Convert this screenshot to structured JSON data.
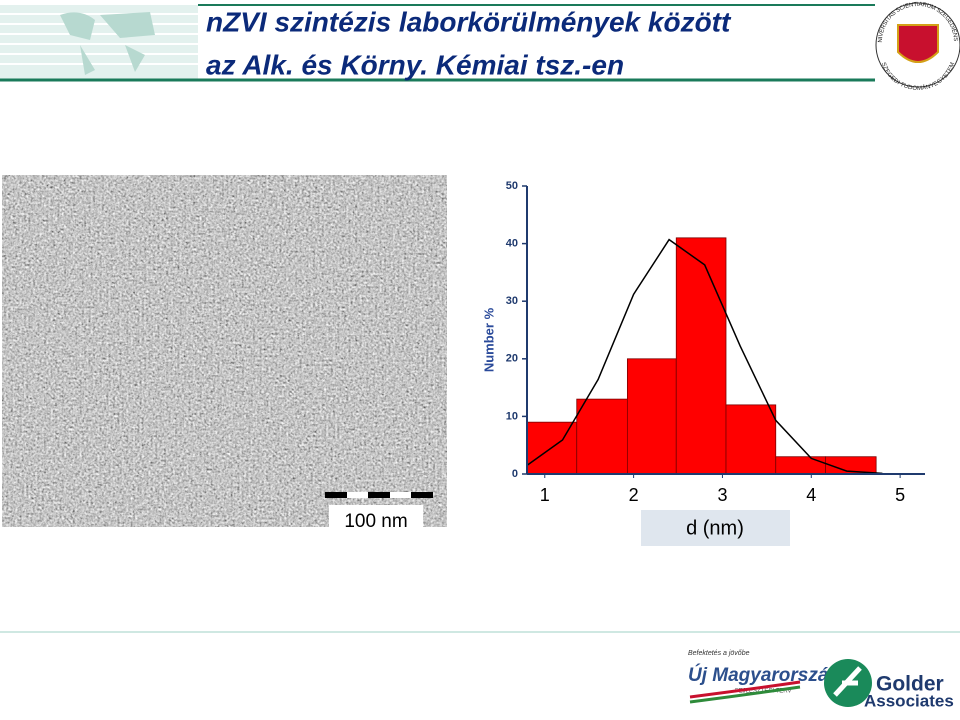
{
  "header": {
    "title_line1": "nZVI szintézis laborkörülmények között",
    "title_line2": "az Alk. és Körny. Kémiai tsz.-en",
    "seal_top": "UNIVERSITAS SCIENTIARUM SZEGEDIENSIS",
    "seal_bottom": "SZEGEDI TUDOMÁNYEGYETEM"
  },
  "image": {
    "scale_bar_label": "100 nm"
  },
  "chart_data": {
    "type": "histogram",
    "bins": [
      0.8,
      1.36,
      1.93,
      2.48,
      3.04,
      3.6,
      4.16,
      4.73
    ],
    "values": [
      9,
      13,
      20,
      41,
      12,
      3,
      3
    ],
    "color": "#ff0000",
    "fit": {
      "x": [
        0.8,
        1.2,
        1.6,
        2.0,
        2.4,
        2.8,
        3.2,
        3.6,
        4.0,
        4.4,
        4.8
      ],
      "values": [
        1.5,
        5.9,
        16.4,
        31.2,
        40.7,
        36.3,
        22.2,
        9.3,
        2.7,
        0.5,
        0.1
      ],
      "color": "#000000"
    },
    "xlim": [
      0.8,
      5.28
    ],
    "xticks": [
      1,
      2,
      3,
      4,
      5
    ],
    "ylim": [
      0,
      50
    ],
    "yticks": [
      0,
      10,
      20,
      30,
      40,
      50
    ],
    "xlabel": "d (nm)",
    "ylabel": "Number %"
  },
  "footer": {
    "logo1_tagline": "Befektetés a jövőbe",
    "logo1_name": "Új Magyarország",
    "logo1_sub": "FEJLESZTÉSI TERV",
    "logo2_name": "Golder",
    "logo2_sub": "Associates"
  }
}
